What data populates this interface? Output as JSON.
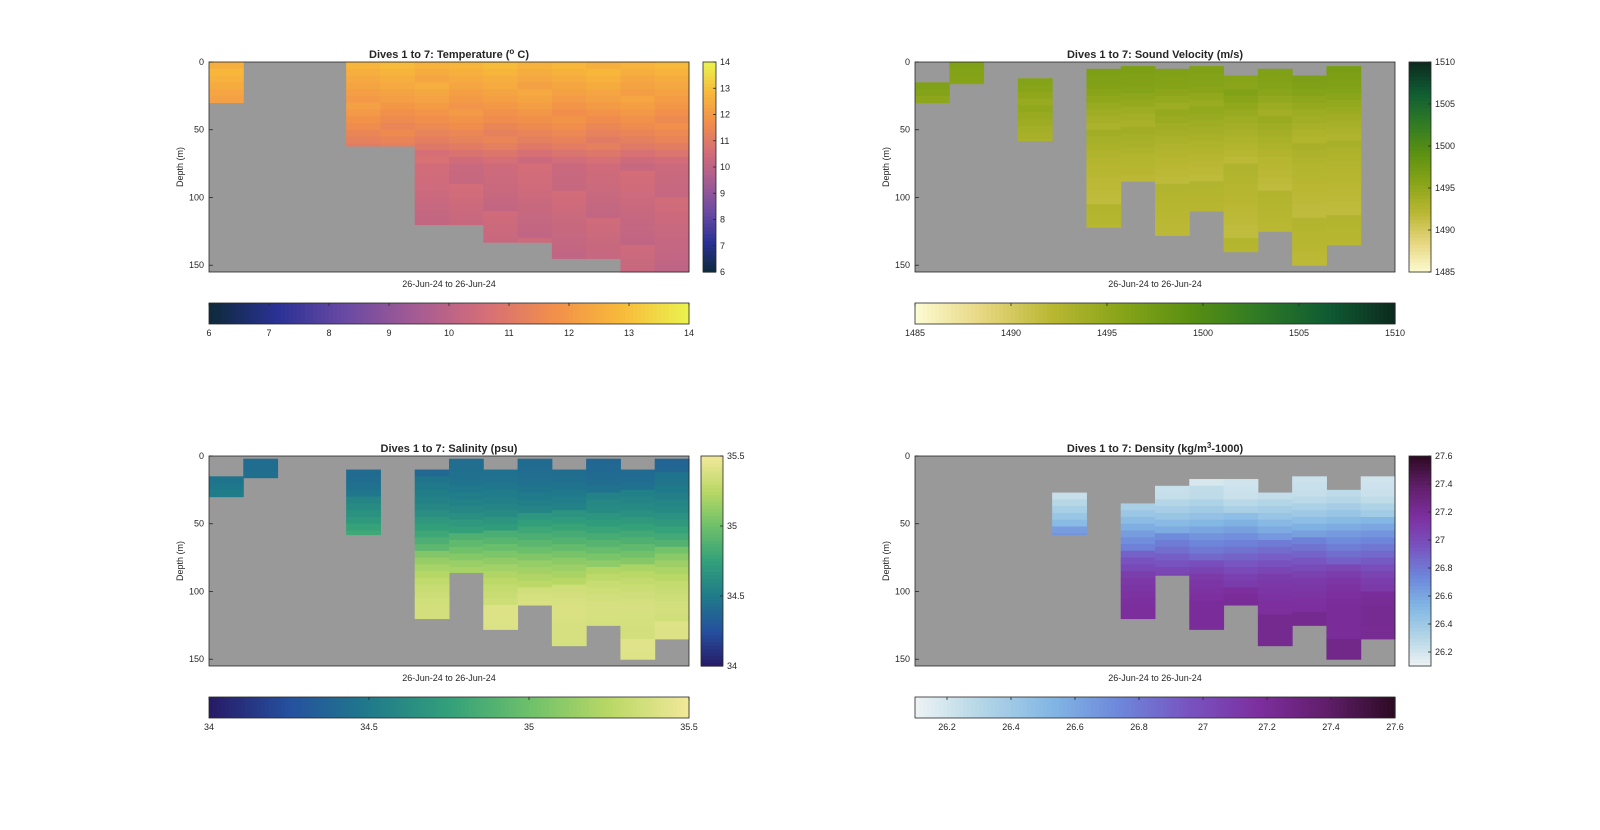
{
  "chart_data": [
    {
      "type": "heatmap",
      "id": "temperature",
      "title": "Dives 1 to 7: Temperature (",
      "title_sup": "o",
      "title_tail": " C)",
      "ylabel": "Depth (m)",
      "xlabel": "26-Jun-24 to 26-Jun-24",
      "ylim": [
        0,
        155
      ],
      "yticks": [
        "0",
        "50",
        "100",
        "150"
      ],
      "ytick_values": [
        0,
        50,
        100,
        150
      ],
      "n_columns": 14,
      "column_depths": [
        [
          0,
          30
        ],
        null,
        null,
        null,
        [
          0,
          62
        ],
        [
          0,
          62
        ],
        [
          0,
          120
        ],
        [
          0,
          120
        ],
        [
          0,
          133
        ],
        [
          0,
          133
        ],
        [
          0,
          145
        ],
        [
          0,
          145
        ],
        [
          0,
          155
        ],
        [
          0,
          155
        ]
      ],
      "profile": [
        [
          0,
          12.8
        ],
        [
          30,
          12.1
        ],
        [
          50,
          11.5
        ],
        [
          62,
          11.1
        ],
        [
          75,
          10.4
        ],
        [
          90,
          10.4
        ],
        [
          110,
          10.3
        ],
        [
          155,
          10.2
        ]
      ],
      "colormap": [
        "#0d2a3a",
        "#2a3195",
        "#6a4aa3",
        "#a45b94",
        "#d46d78",
        "#f18e4b",
        "#f8b93a",
        "#e9f44f"
      ],
      "clim": [
        6,
        14
      ],
      "side_ticks": [
        "6",
        "7",
        "8",
        "9",
        "10",
        "11",
        "12",
        "13",
        "14"
      ],
      "side_tick_values": [
        6,
        7,
        8,
        9,
        10,
        11,
        12,
        13,
        14
      ],
      "bottom_ticks": [
        "6",
        "7",
        "8",
        "9",
        "10",
        "11",
        "12",
        "13",
        "14"
      ],
      "bottom_tick_values": [
        6,
        7,
        8,
        9,
        10,
        11,
        12,
        13,
        14
      ],
      "nan_color": "#999999"
    },
    {
      "type": "heatmap",
      "id": "sound_velocity",
      "title": "Dives 1 to 7: Sound Velocity (m/s)",
      "ylabel": "Depth (m)",
      "xlabel": "26-Jun-24 to 26-Jun-24",
      "ylim": [
        0,
        155
      ],
      "yticks": [
        "0",
        "50",
        "100",
        "150"
      ],
      "ytick_values": [
        0,
        50,
        100,
        150
      ],
      "n_columns": 14,
      "column_depths": [
        [
          15,
          30
        ],
        [
          0,
          16
        ],
        null,
        [
          12,
          58
        ],
        null,
        [
          5,
          122
        ],
        [
          3,
          88
        ],
        [
          5,
          128
        ],
        [
          3,
          110
        ],
        [
          10,
          140
        ],
        [
          5,
          125
        ],
        [
          10,
          150
        ],
        [
          3,
          135
        ],
        null
      ],
      "profile": [
        [
          0,
          1496.5
        ],
        [
          20,
          1496.0
        ],
        [
          35,
          1494.5
        ],
        [
          50,
          1493.5
        ],
        [
          70,
          1492.5
        ],
        [
          90,
          1492.2
        ],
        [
          155,
          1492.0
        ]
      ],
      "colormap": [
        "#fdfbd2",
        "#e6d67f",
        "#b9b732",
        "#88a418",
        "#5a9012",
        "#2f7a25",
        "#0f5c33",
        "#0c2a1e"
      ],
      "clim": [
        1485,
        1510
      ],
      "side_ticks": [
        "1485",
        "1490",
        "1495",
        "1500",
        "1505",
        "1510"
      ],
      "side_tick_values": [
        1485,
        1490,
        1495,
        1500,
        1505,
        1510
      ],
      "bottom_ticks": [
        "1485",
        "1490",
        "1495",
        "1500",
        "1505",
        "1510"
      ],
      "bottom_tick_values": [
        1485,
        1490,
        1495,
        1500,
        1505,
        1510
      ],
      "nan_color": "#999999"
    },
    {
      "type": "heatmap",
      "id": "salinity",
      "title": "Dives 1 to 7: Salinity (psu)",
      "ylabel": "Depth (m)",
      "xlabel": "26-Jun-24 to 26-Jun-24",
      "ylim": [
        0,
        155
      ],
      "yticks": [
        "0",
        "50",
        "100",
        "150"
      ],
      "ytick_values": [
        0,
        50,
        100,
        150
      ],
      "n_columns": 14,
      "column_depths": [
        [
          15,
          30
        ],
        [
          2,
          16
        ],
        null,
        null,
        [
          10,
          58
        ],
        null,
        [
          10,
          120
        ],
        [
          2,
          86
        ],
        [
          10,
          128
        ],
        [
          2,
          110
        ],
        [
          10,
          140
        ],
        [
          2,
          125
        ],
        [
          10,
          150
        ],
        [
          2,
          135
        ]
      ],
      "profile": [
        [
          0,
          34.38
        ],
        [
          20,
          34.45
        ],
        [
          40,
          34.6
        ],
        [
          60,
          34.85
        ],
        [
          80,
          35.15
        ],
        [
          95,
          35.3
        ],
        [
          110,
          35.38
        ],
        [
          155,
          35.4
        ]
      ],
      "colormap": [
        "#271a66",
        "#25509e",
        "#1f7a8a",
        "#33a07a",
        "#6dc06a",
        "#b9d865",
        "#f2e89a"
      ],
      "clim": [
        34,
        35.5
      ],
      "side_ticks": [
        "34",
        "34.5",
        "35",
        "35.5"
      ],
      "side_tick_values": [
        34,
        34.5,
        35,
        35.5
      ],
      "bottom_ticks": [
        "34",
        "34.5",
        "35",
        "35.5"
      ],
      "bottom_tick_values": [
        34,
        34.5,
        35,
        35.5
      ],
      "nan_color": "#999999"
    },
    {
      "type": "heatmap",
      "id": "density",
      "title": "Dives 1 to 7: Density (kg/m",
      "title_sup": "3",
      "title_tail": "-1000)",
      "ylabel": "Depth (m)",
      "xlabel": "26-Jun-24 to 26-Jun-24",
      "ylim": [
        0,
        155
      ],
      "yticks": [
        "0",
        "50",
        "100",
        "150"
      ],
      "ytick_values": [
        0,
        50,
        100,
        150
      ],
      "n_columns": 14,
      "column_depths": [
        null,
        null,
        null,
        null,
        [
          27,
          58
        ],
        null,
        [
          35,
          120
        ],
        [
          22,
          88
        ],
        [
          17,
          128
        ],
        [
          17,
          110
        ],
        [
          27,
          140
        ],
        [
          15,
          125
        ],
        [
          25,
          150
        ],
        [
          15,
          135
        ]
      ],
      "profile": [
        [
          0,
          26.15
        ],
        [
          30,
          26.25
        ],
        [
          45,
          26.45
        ],
        [
          60,
          26.7
        ],
        [
          75,
          26.9
        ],
        [
          90,
          27.1
        ],
        [
          110,
          27.2
        ],
        [
          155,
          27.25
        ]
      ],
      "colormap": [
        "#eef3f4",
        "#b2d5e6",
        "#82b6e4",
        "#6d86da",
        "#7853c0",
        "#7d2f9f",
        "#601e6a",
        "#2d0a22"
      ],
      "clim": [
        26.1,
        27.6
      ],
      "side_ticks": [
        "26.2",
        "26.4",
        "26.6",
        "26.8",
        "27",
        "27.2",
        "27.4",
        "27.6"
      ],
      "side_tick_values": [
        26.2,
        26.4,
        26.6,
        26.8,
        27,
        27.2,
        27.4,
        27.6
      ],
      "bottom_ticks": [
        "26.2",
        "26.4",
        "26.6",
        "26.8",
        "27",
        "27.2",
        "27.4",
        "27.6"
      ],
      "bottom_tick_values": [
        26.2,
        26.4,
        26.6,
        26.8,
        27,
        27.2,
        27.4,
        27.6
      ],
      "nan_color": "#999999"
    }
  ]
}
